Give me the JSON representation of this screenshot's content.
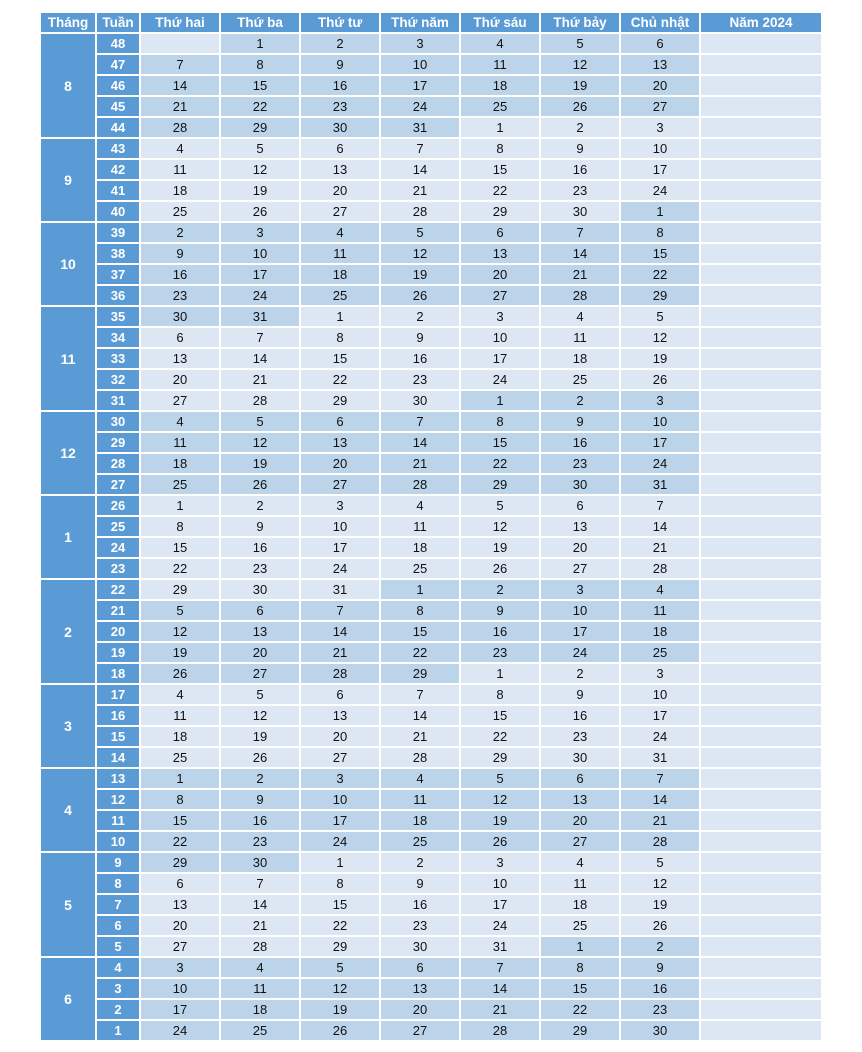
{
  "header": [
    "Tháng",
    "Tuần",
    "Thứ hai",
    "Thứ ba",
    "Thứ tư",
    "Thứ năm",
    "Thứ sáu",
    "Thứ bảy",
    "Chủ nhật",
    "Năm 2024"
  ],
  "months": [
    {
      "label": "8",
      "rows": [
        {
          "week": "48",
          "days": [
            "",
            "1",
            "2",
            "3",
            "4",
            "5",
            "6"
          ]
        },
        {
          "week": "47",
          "days": [
            "7",
            "8",
            "9",
            "10",
            "11",
            "12",
            "13"
          ]
        },
        {
          "week": "46",
          "days": [
            "14",
            "15",
            "16",
            "17",
            "18",
            "19",
            "20"
          ]
        },
        {
          "week": "45",
          "days": [
            "21",
            "22",
            "23",
            "24",
            "25",
            "26",
            "27"
          ]
        },
        {
          "week": "44",
          "days": [
            "28",
            "29",
            "30",
            "31",
            "1",
            "2",
            "3"
          ]
        }
      ]
    },
    {
      "label": "9",
      "rows": [
        {
          "week": "43",
          "days": [
            "4",
            "5",
            "6",
            "7",
            "8",
            "9",
            "10"
          ]
        },
        {
          "week": "42",
          "days": [
            "11",
            "12",
            "13",
            "14",
            "15",
            "16",
            "17"
          ]
        },
        {
          "week": "41",
          "days": [
            "18",
            "19",
            "20",
            "21",
            "22",
            "23",
            "24"
          ]
        },
        {
          "week": "40",
          "days": [
            "25",
            "26",
            "27",
            "28",
            "29",
            "30",
            "1"
          ]
        }
      ]
    },
    {
      "label": "10",
      "rows": [
        {
          "week": "39",
          "days": [
            "2",
            "3",
            "4",
            "5",
            "6",
            "7",
            "8"
          ]
        },
        {
          "week": "38",
          "days": [
            "9",
            "10",
            "11",
            "12",
            "13",
            "14",
            "15"
          ]
        },
        {
          "week": "37",
          "days": [
            "16",
            "17",
            "18",
            "19",
            "20",
            "21",
            "22"
          ]
        },
        {
          "week": "36",
          "days": [
            "23",
            "24",
            "25",
            "26",
            "27",
            "28",
            "29"
          ]
        }
      ]
    },
    {
      "label": "11",
      "rows": [
        {
          "week": "35",
          "days": [
            "30",
            "31",
            "1",
            "2",
            "3",
            "4",
            "5"
          ]
        },
        {
          "week": "34",
          "days": [
            "6",
            "7",
            "8",
            "9",
            "10",
            "11",
            "12"
          ]
        },
        {
          "week": "33",
          "days": [
            "13",
            "14",
            "15",
            "16",
            "17",
            "18",
            "19"
          ]
        },
        {
          "week": "32",
          "days": [
            "20",
            "21",
            "22",
            "23",
            "24",
            "25",
            "26"
          ]
        },
        {
          "week": "31",
          "days": [
            "27",
            "28",
            "29",
            "30",
            "1",
            "2",
            "3"
          ]
        }
      ]
    },
    {
      "label": "12",
      "rows": [
        {
          "week": "30",
          "days": [
            "4",
            "5",
            "6",
            "7",
            "8",
            "9",
            "10"
          ]
        },
        {
          "week": "29",
          "days": [
            "11",
            "12",
            "13",
            "14",
            "15",
            "16",
            "17"
          ]
        },
        {
          "week": "28",
          "days": [
            "18",
            "19",
            "20",
            "21",
            "22",
            "23",
            "24"
          ]
        },
        {
          "week": "27",
          "days": [
            "25",
            "26",
            "27",
            "28",
            "29",
            "30",
            "31"
          ]
        }
      ]
    },
    {
      "label": "1",
      "rows": [
        {
          "week": "26",
          "days": [
            "1",
            "2",
            "3",
            "4",
            "5",
            "6",
            "7"
          ]
        },
        {
          "week": "25",
          "days": [
            "8",
            "9",
            "10",
            "11",
            "12",
            "13",
            "14"
          ]
        },
        {
          "week": "24",
          "days": [
            "15",
            "16",
            "17",
            "18",
            "19",
            "20",
            "21"
          ]
        },
        {
          "week": "23",
          "days": [
            "22",
            "23",
            "24",
            "25",
            "26",
            "27",
            "28"
          ]
        }
      ]
    },
    {
      "label": "2",
      "rows": [
        {
          "week": "22",
          "days": [
            "29",
            "30",
            "31",
            "1",
            "2",
            "3",
            "4"
          ]
        },
        {
          "week": "21",
          "days": [
            "5",
            "6",
            "7",
            "8",
            "9",
            "10",
            "11"
          ]
        },
        {
          "week": "20",
          "days": [
            "12",
            "13",
            "14",
            "15",
            "16",
            "17",
            "18"
          ]
        },
        {
          "week": "19",
          "days": [
            "19",
            "20",
            "21",
            "22",
            "23",
            "24",
            "25"
          ]
        },
        {
          "week": "18",
          "days": [
            "26",
            "27",
            "28",
            "29",
            "1",
            "2",
            "3"
          ]
        }
      ]
    },
    {
      "label": "3",
      "rows": [
        {
          "week": "17",
          "days": [
            "4",
            "5",
            "6",
            "7",
            "8",
            "9",
            "10"
          ]
        },
        {
          "week": "16",
          "days": [
            "11",
            "12",
            "13",
            "14",
            "15",
            "16",
            "17"
          ]
        },
        {
          "week": "15",
          "days": [
            "18",
            "19",
            "20",
            "21",
            "22",
            "23",
            "24"
          ]
        },
        {
          "week": "14",
          "days": [
            "25",
            "26",
            "27",
            "28",
            "29",
            "30",
            "31"
          ]
        }
      ]
    },
    {
      "label": "4",
      "rows": [
        {
          "week": "13",
          "days": [
            "1",
            "2",
            "3",
            "4",
            "5",
            "6",
            "7"
          ]
        },
        {
          "week": "12",
          "days": [
            "8",
            "9",
            "10",
            "11",
            "12",
            "13",
            "14"
          ]
        },
        {
          "week": "11",
          "days": [
            "15",
            "16",
            "17",
            "18",
            "19",
            "20",
            "21"
          ]
        },
        {
          "week": "10",
          "days": [
            "22",
            "23",
            "24",
            "25",
            "26",
            "27",
            "28"
          ]
        }
      ]
    },
    {
      "label": "5",
      "rows": [
        {
          "week": "9",
          "days": [
            "29",
            "30",
            "1",
            "2",
            "3",
            "4",
            "5"
          ]
        },
        {
          "week": "8",
          "days": [
            "6",
            "7",
            "8",
            "9",
            "10",
            "11",
            "12"
          ]
        },
        {
          "week": "7",
          "days": [
            "13",
            "14",
            "15",
            "16",
            "17",
            "18",
            "19"
          ]
        },
        {
          "week": "6",
          "days": [
            "20",
            "21",
            "22",
            "23",
            "24",
            "25",
            "26"
          ]
        },
        {
          "week": "5",
          "days": [
            "27",
            "28",
            "29",
            "30",
            "31",
            "1",
            "2"
          ]
        }
      ]
    },
    {
      "label": "6",
      "rows": [
        {
          "week": "4",
          "days": [
            "3",
            "4",
            "5",
            "6",
            "7",
            "8",
            "9"
          ]
        },
        {
          "week": "3",
          "days": [
            "10",
            "11",
            "12",
            "13",
            "14",
            "15",
            "16"
          ]
        },
        {
          "week": "2",
          "days": [
            "17",
            "18",
            "19",
            "20",
            "21",
            "22",
            "23"
          ]
        },
        {
          "week": "1",
          "days": [
            "24",
            "25",
            "26",
            "27",
            "28",
            "29",
            "30"
          ]
        }
      ]
    }
  ],
  "colors": {
    "header": "#5b9bd5",
    "light": "#dde7f3",
    "dark": "#bcd4ea"
  }
}
